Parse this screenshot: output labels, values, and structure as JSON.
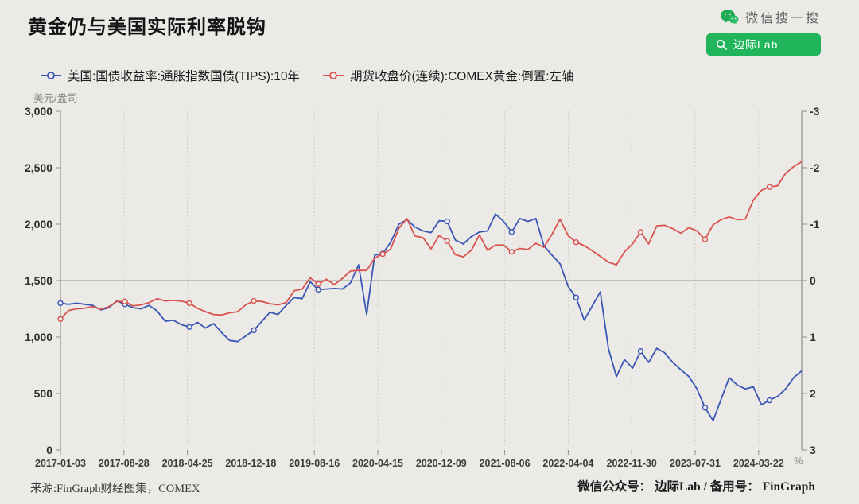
{
  "header": {
    "title": "黄金仍与美国实际利率脱钩",
    "wechat_search_label": "微信搜一搜",
    "wechat_button_label": "边际Lab"
  },
  "legend": [
    {
      "label": "美国:国债收益率:通胀指数国债(TIPS):10年",
      "color": "#3a57b5"
    },
    {
      "label": "期货收盘价(连续):COMEX黄金:倒置:左轴",
      "color": "#d9534f"
    }
  ],
  "footer": {
    "source": "来源:FinGraph财经图集，COMEX",
    "account": "微信公众号： 边际Lab / 备用号： FinGraph"
  },
  "colors": {
    "background": "#eceae7",
    "wechat_green": "#20b55a",
    "tips_blue": "#3a57b5",
    "gold_red": "#d9534f",
    "gridline": "#c9c6c1",
    "zero_line": "#a5a39f",
    "axis": "#8f8d89"
  },
  "chart_data": {
    "type": "line",
    "title": "黄金仍与美国实际利率脱钩",
    "x_tick_labels": [
      "2017-01-03",
      "2017-08-28",
      "2018-04-25",
      "2018-12-18",
      "2019-08-16",
      "2020-04-15",
      "2020-12-09",
      "2021-08-06",
      "2022-04-04",
      "2022-11-30",
      "2023-07-31",
      "2024-03-22"
    ],
    "x_start": "2017-01",
    "x_end": "2024-09",
    "x_sampling": "monthly",
    "left_axis": {
      "label": "美元/盎司",
      "min": 0,
      "max": 3000,
      "ticks": [
        "3,000",
        "2,500",
        "2,000",
        "1,500",
        "1,000",
        "500",
        "0"
      ]
    },
    "right_axis": {
      "label": "%",
      "min": -3,
      "max": 3,
      "inverted": true,
      "ticks": [
        "-3",
        "-2",
        "-1",
        "0",
        "1",
        "2",
        "3"
      ]
    },
    "grid": {
      "vertical": "dotted at each x tick",
      "horizontal": "solid line at left 1,500 / right 0"
    },
    "legend_position": "top-left",
    "series": [
      {
        "id": "tips-yield",
        "name": "美国:国债收益率:通胀指数国债(TIPS):10年",
        "axis": "right",
        "color": "#3a57b5",
        "monthly_values": [
          0.4,
          0.42,
          0.4,
          0.42,
          0.44,
          0.52,
          0.48,
          0.36,
          0.42,
          0.48,
          0.5,
          0.44,
          0.54,
          0.72,
          0.7,
          0.78,
          0.82,
          0.74,
          0.84,
          0.76,
          0.92,
          1.06,
          1.08,
          0.98,
          0.88,
          0.72,
          0.56,
          0.6,
          0.44,
          0.3,
          0.32,
          0.02,
          0.16,
          0.15,
          0.14,
          0.15,
          0.04,
          -0.28,
          0.6,
          -0.45,
          -0.48,
          -0.68,
          -1.0,
          -1.08,
          -0.95,
          -0.88,
          -0.85,
          -1.06,
          -1.05,
          -0.72,
          -0.65,
          -0.78,
          -0.86,
          -0.88,
          -1.18,
          -1.05,
          -0.86,
          -1.1,
          -1.05,
          -1.1,
          -0.62,
          -0.45,
          -0.3,
          0.1,
          0.3,
          0.7,
          0.45,
          0.2,
          1.2,
          1.7,
          1.4,
          1.55,
          1.25,
          1.45,
          1.2,
          1.28,
          1.45,
          1.58,
          1.7,
          1.92,
          2.25,
          2.48,
          2.1,
          1.72,
          1.85,
          1.92,
          1.88,
          2.2,
          2.12,
          2.05,
          1.92,
          1.72,
          1.6
        ]
      },
      {
        "id": "comex-gold",
        "name": "期货收盘价(连续):COMEX黄金:倒置:左轴",
        "axis": "left",
        "color": "#d9534f",
        "monthly_values": [
          1160,
          1235,
          1250,
          1255,
          1270,
          1245,
          1270,
          1315,
          1315,
          1275,
          1285,
          1305,
          1340,
          1320,
          1325,
          1318,
          1300,
          1255,
          1225,
          1200,
          1195,
          1215,
          1225,
          1285,
          1320,
          1315,
          1295,
          1285,
          1305,
          1410,
          1425,
          1525,
          1470,
          1512,
          1465,
          1520,
          1585,
          1590,
          1590,
          1700,
          1735,
          1780,
          1965,
          2050,
          1895,
          1880,
          1780,
          1900,
          1850,
          1730,
          1710,
          1770,
          1905,
          1770,
          1815,
          1815,
          1755,
          1785,
          1775,
          1830,
          1795,
          1910,
          2045,
          1900,
          1840,
          1810,
          1765,
          1715,
          1665,
          1640,
          1755,
          1825,
          1930,
          1825,
          1985,
          1990,
          1960,
          1920,
          1970,
          1940,
          1865,
          1995,
          2040,
          2065,
          2040,
          2045,
          2215,
          2300,
          2330,
          2340,
          2450,
          2510,
          2555
        ]
      }
    ]
  }
}
